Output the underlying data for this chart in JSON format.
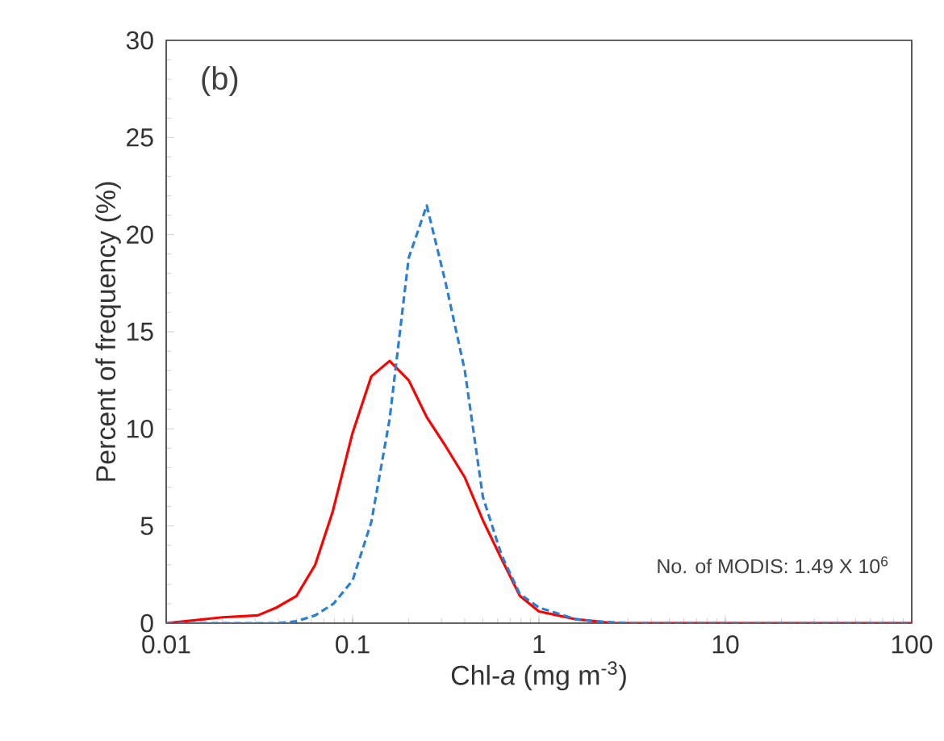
{
  "chart_data": {
    "type": "line",
    "xlabel": "Chl-*a* (mg m$^{-3}$)",
    "ylabel": "Percent of frequency (%)",
    "annotations": [
      "(b)",
      "No. of MODIS: 1.49 X 10$^{6}$"
    ],
    "log": "x",
    "grid": false,
    "marker": "none",
    "xlim": [
      0.01,
      100
    ],
    "xticks": [
      0.01,
      0.1,
      1,
      10,
      100
    ],
    "ylim": [
      0,
      30
    ],
    "yticks": [
      0,
      5,
      10,
      15,
      20,
      25,
      30
    ],
    "series": [
      {
        "color": "#ff0000",
        "line_style": "solid",
        "x": [
          0.01,
          0.02,
          0.031,
          0.039,
          0.05,
          0.063,
          0.078,
          0.1,
          0.126,
          0.158,
          0.2,
          0.25,
          0.316,
          0.4,
          0.5,
          0.63,
          0.79,
          1,
          1.58,
          2.5,
          100
        ],
        "values": [
          0,
          0.3,
          0.4,
          0.8,
          1.4,
          3.0,
          5.7,
          9.8,
          12.7,
          13.5,
          12.5,
          10.6,
          9.1,
          7.5,
          5.3,
          3.3,
          1.4,
          0.6,
          0.2,
          0,
          0
        ]
      },
      {
        "color": "#2a7fd4",
        "line_style": "dashed",
        "x": [
          0.01,
          0.03,
          0.04,
          0.05,
          0.063,
          0.079,
          0.1,
          0.126,
          0.158,
          0.2,
          0.25,
          0.316,
          0.4,
          0.5,
          0.63,
          0.79,
          1,
          1.26,
          1.58,
          2,
          3,
          100
        ],
        "values": [
          0,
          0,
          0,
          0.1,
          0.4,
          1.0,
          2.2,
          5.2,
          10.5,
          18.8,
          21.5,
          17.5,
          13.0,
          6.5,
          3.5,
          1.5,
          0.8,
          0.5,
          0.2,
          0.1,
          0,
          0
        ]
      }
    ]
  }
}
